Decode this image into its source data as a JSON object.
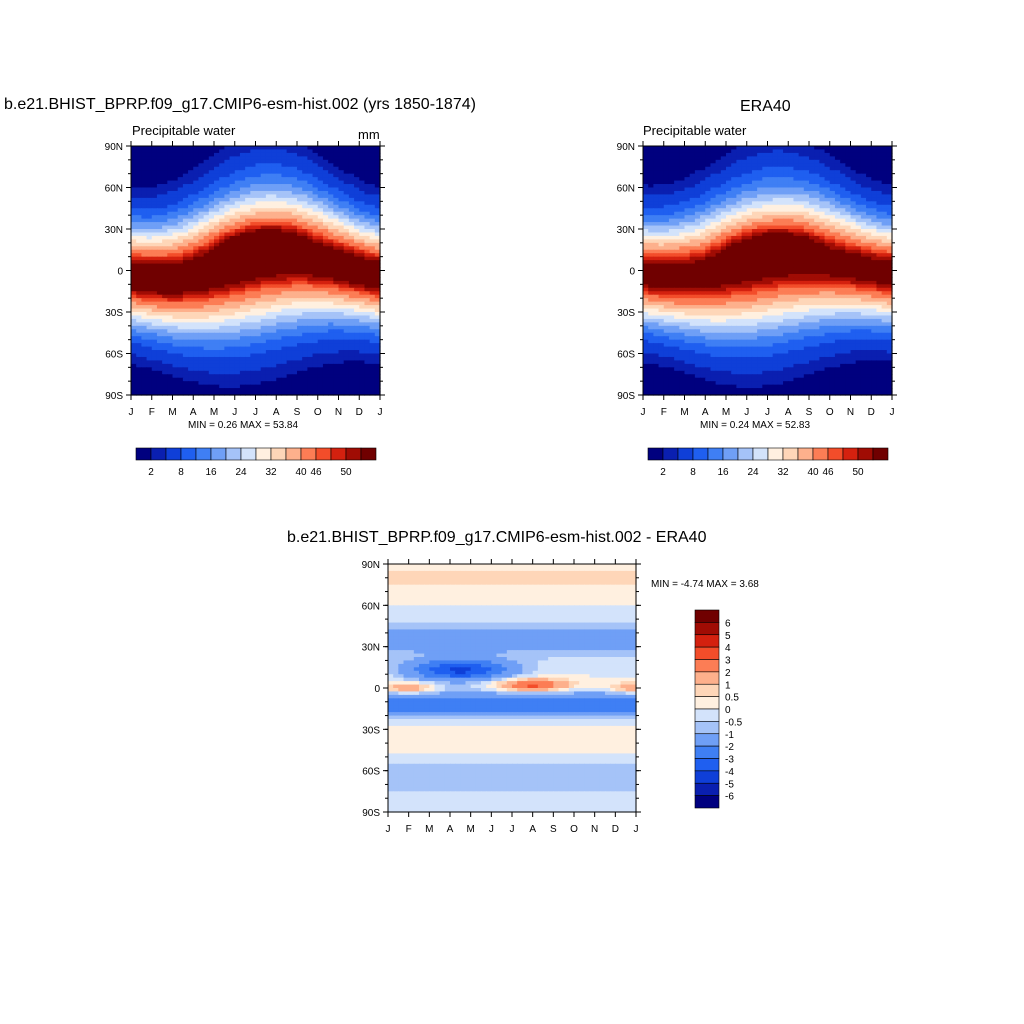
{
  "panels": [
    {
      "title": "b.e21.BHIST_BPRP.f09_g17.CMIP6-esm-hist.002 (yrs 1850-1874)",
      "left_label": "Precipitable water",
      "right_label": "mm",
      "stats": "MIN =   0.26 MAX =  53.84"
    },
    {
      "title": "ERA40",
      "left_label": "Precipitable water",
      "right_label": "",
      "stats": "MIN =   0.24 MAX =  52.83"
    },
    {
      "title": "b.e21.BHIST_BPRP.f09_g17.CMIP6-esm-hist.002 - ERA40",
      "left_label": "",
      "right_label": "",
      "stats": "MIN =  -4.74 MAX =   3.68"
    }
  ],
  "chart_data": [
    {
      "type": "heatmap",
      "title": "b.e21.BHIST_BPRP.f09_g17.CMIP6-esm-hist.002 (yrs 1850-1874)",
      "variable": "Precipitable water",
      "units": "mm",
      "x_tick_labels": [
        "J",
        "F",
        "M",
        "A",
        "M",
        "J",
        "J",
        "A",
        "S",
        "O",
        "N",
        "D",
        "J"
      ],
      "y_tick_labels": [
        "90N",
        "60N",
        "30N",
        "0",
        "30S",
        "60S",
        "90S"
      ],
      "ylim": [
        -90,
        90
      ],
      "min": 0.26,
      "max": 53.84,
      "colorbar_levels": [
        2,
        4,
        8,
        12,
        16,
        20,
        24,
        28,
        32,
        36,
        40,
        44,
        46,
        48,
        50
      ],
      "colorbar_labels": [
        "2",
        "8",
        "16",
        "24",
        "32",
        "40",
        "46",
        "50"
      ],
      "colormap": "BlueWhiteOrangeRed"
    },
    {
      "type": "heatmap",
      "title": "ERA40",
      "variable": "Precipitable water",
      "x_tick_labels": [
        "J",
        "F",
        "M",
        "A",
        "M",
        "J",
        "J",
        "A",
        "S",
        "O",
        "N",
        "D",
        "J"
      ],
      "y_tick_labels": [
        "90N",
        "60N",
        "30N",
        "0",
        "30S",
        "60S",
        "90S"
      ],
      "ylim": [
        -90,
        90
      ],
      "min": 0.24,
      "max": 52.83,
      "colorbar_levels": [
        2,
        4,
        8,
        12,
        16,
        20,
        24,
        28,
        32,
        36,
        40,
        44,
        46,
        48,
        50
      ],
      "colorbar_labels": [
        "2",
        "8",
        "16",
        "24",
        "32",
        "40",
        "46",
        "50"
      ],
      "colormap": "BlueWhiteOrangeRed"
    },
    {
      "type": "heatmap",
      "title": "b.e21.BHIST_BPRP.f09_g17.CMIP6-esm-hist.002 - ERA40",
      "x_tick_labels": [
        "J",
        "F",
        "M",
        "A",
        "M",
        "J",
        "J",
        "A",
        "S",
        "O",
        "N",
        "D",
        "J"
      ],
      "y_tick_labels": [
        "90N",
        "60N",
        "30N",
        "0",
        "30S",
        "60S",
        "90S"
      ],
      "ylim": [
        -90,
        90
      ],
      "min": -4.74,
      "max": 3.68,
      "colorbar_levels": [
        -6,
        -5,
        -4,
        -3,
        -2,
        -1,
        -0.5,
        0,
        0.5,
        1,
        2,
        3,
        4,
        5,
        6
      ],
      "colorbar_labels": [
        "-6",
        "-5",
        "-4",
        "-3",
        "-2",
        "-1",
        "-0.5",
        "0",
        "0.5",
        "1",
        "2",
        "3",
        "4",
        "5",
        "6"
      ],
      "colormap": "BlueWhiteOrangeRed"
    }
  ],
  "colors": {
    "scale": [
      "#00007f",
      "#0a1fb0",
      "#0f3fd8",
      "#1f5ff0",
      "#3f7ff4",
      "#6f9ff6",
      "#a5c3f8",
      "#d3e3fb",
      "#fff0e0",
      "#fed6b8",
      "#fdb08c",
      "#fc7d55",
      "#f34d2a",
      "#d4210f",
      "#a00c04",
      "#700000"
    ]
  }
}
